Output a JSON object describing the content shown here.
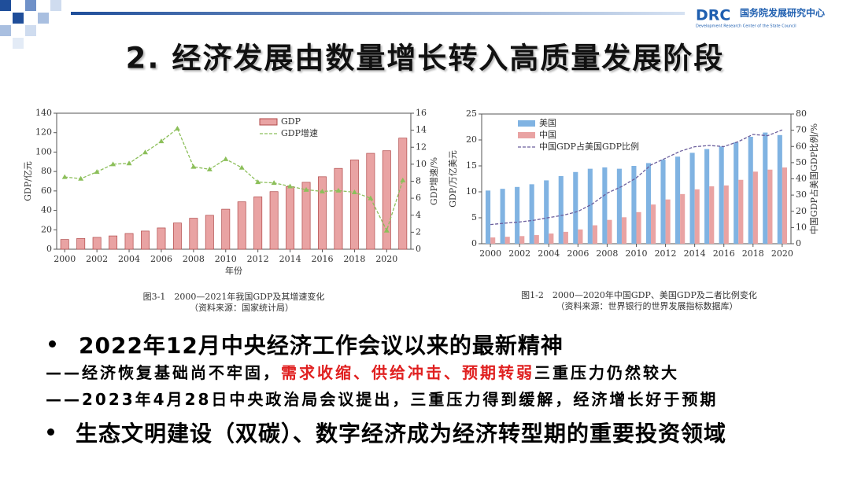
{
  "header": {
    "logo": "DRC",
    "org": "国务院发展研究中心",
    "org_en": "Development Research Center of the State Council"
  },
  "title": "2. 经济发展由数量增长转入高质量发展阶段",
  "chart_data": [
    {
      "type": "bar",
      "x": [
        2000,
        2001,
        2002,
        2003,
        2004,
        2005,
        2006,
        2007,
        2008,
        2009,
        2010,
        2011,
        2012,
        2013,
        2014,
        2015,
        2016,
        2017,
        2018,
        2019,
        2020,
        2021
      ],
      "series": [
        {
          "name": "GDP",
          "type": "bar",
          "color": "#e9a3a3",
          "values": [
            10.0,
            11.1,
            12.2,
            13.7,
            16.2,
            18.7,
            21.9,
            27.0,
            31.9,
            34.9,
            41.2,
            48.8,
            53.9,
            59.3,
            64.4,
            68.9,
            74.6,
            83.2,
            91.9,
            98.7,
            101.4,
            114.4
          ]
        },
        {
          "name": "GDP增速",
          "type": "line",
          "axis": "y2",
          "color": "#8cbf5a",
          "values": [
            8.5,
            8.3,
            9.1,
            10.0,
            10.1,
            11.4,
            12.7,
            14.2,
            9.7,
            9.4,
            10.6,
            9.6,
            7.9,
            7.8,
            7.4,
            7.0,
            6.8,
            6.9,
            6.7,
            6.0,
            2.2,
            8.1
          ]
        }
      ],
      "xlim": [
        1999.5,
        2021.5
      ],
      "xticks": [
        2000,
        2002,
        2004,
        2006,
        2008,
        2010,
        2012,
        2014,
        2016,
        2018,
        2020
      ],
      "ylim": [
        0,
        140
      ],
      "yticks": [
        0,
        20,
        40,
        60,
        80,
        100,
        120,
        140
      ],
      "y2lim": [
        0,
        16
      ],
      "y2ticks": [
        0,
        2,
        4,
        6,
        8,
        10,
        12,
        14,
        16
      ],
      "x_label": "年份",
      "y_label": "GDP/亿元",
      "y2_label": "GDP增速/%",
      "legend": "top",
      "caption": "图3-1　2000—2021年我国GDP及其增速变化",
      "source": "（资料来源：国家统计局）"
    },
    {
      "type": "bar",
      "x": [
        2000,
        2001,
        2002,
        2003,
        2004,
        2005,
        2006,
        2007,
        2008,
        2009,
        2010,
        2011,
        2012,
        2013,
        2014,
        2015,
        2016,
        2017,
        2018,
        2019,
        2020
      ],
      "series": [
        {
          "name": "美国",
          "type": "bar",
          "color": "#80b3e2",
          "values": [
            10.25,
            10.58,
            10.94,
            11.46,
            12.21,
            13.04,
            13.82,
            14.45,
            14.71,
            14.45,
            15.0,
            15.54,
            16.2,
            16.78,
            17.52,
            18.24,
            18.75,
            19.54,
            20.61,
            21.43,
            20.94
          ]
        },
        {
          "name": "中国",
          "type": "bar",
          "color": "#e9a3a3",
          "values": [
            1.21,
            1.34,
            1.47,
            1.66,
            1.96,
            2.29,
            2.75,
            3.55,
            4.59,
            5.1,
            6.09,
            7.55,
            8.53,
            9.57,
            10.48,
            11.06,
            11.23,
            12.31,
            13.89,
            14.28,
            14.69
          ]
        },
        {
          "name": "中国GDP占美国GDP比例",
          "type": "line",
          "axis": "y2",
          "color": "#6b5e9c",
          "values": [
            11.8,
            12.7,
            13.4,
            14.5,
            16.1,
            17.6,
            19.9,
            24.6,
            31.2,
            35.3,
            40.6,
            48.6,
            52.7,
            57.0,
            59.8,
            60.6,
            59.9,
            63.0,
            67.4,
            66.6,
            70.2
          ]
        }
      ],
      "xlim": [
        1999.4,
        2020.6
      ],
      "xticks": [
        2000,
        2002,
        2004,
        2006,
        2008,
        2010,
        2012,
        2014,
        2016,
        2018,
        2020
      ],
      "ylim": [
        0,
        25
      ],
      "yticks": [
        0,
        5,
        10,
        15,
        20,
        25
      ],
      "y2lim": [
        0,
        80
      ],
      "y2ticks": [
        0,
        10,
        20,
        30,
        40,
        50,
        60,
        70,
        80
      ],
      "y_label": "GDP/万亿美元",
      "y2_label": "中国GDP占美国GDP比例/%",
      "legend": "upper left",
      "caption": "图1-2　2000—2020年中国GDP、美国GDP及二者比例变化",
      "source": "（资料来源：世界银行的世界发展指标数据库）"
    }
  ],
  "bullets": [
    {
      "text": "2022年12月中央经济工作会议以来的最新精神"
    },
    {
      "parts": [
        "——经济恢复基础尚不牢固，",
        "需求收缩、供给冲击、预期转弱",
        "三重压力仍然较大"
      ]
    },
    {
      "text": "——2023年4月28日中央政治局会议提出，三重压力得到缓解，经济增长好于预期"
    },
    {
      "text": "生态文明建设（双碳）、数字经济成为经济转型期的重要投资领域"
    }
  ]
}
